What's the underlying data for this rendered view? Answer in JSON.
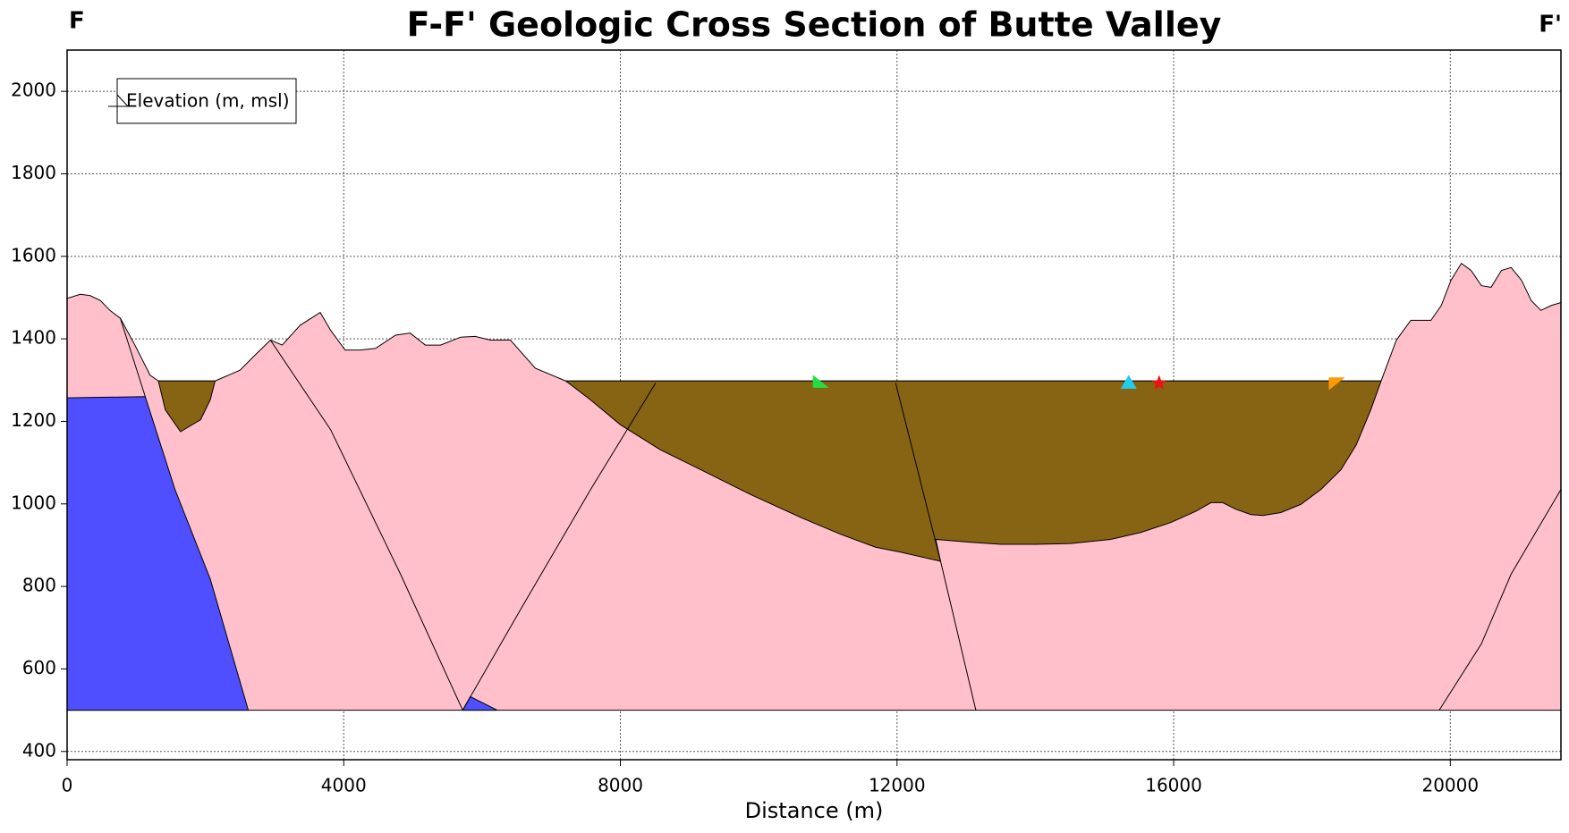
{
  "chart_data": {
    "type": "cross-section",
    "title": "F-F' Geologic Cross Section of Butte Valley",
    "left_label": "F",
    "right_label": "F'",
    "x_label": "Distance (m)",
    "xlim": [
      0,
      21600
    ],
    "ylim": [
      380,
      2100
    ],
    "xticks": [
      0,
      4000,
      8000,
      12000,
      16000,
      20000
    ],
    "yticks": [
      400,
      600,
      800,
      1000,
      1200,
      1400,
      1600,
      1800,
      2000
    ],
    "grid": true,
    "legend": {
      "position": "upper-left",
      "label": "Elevation (m, msl)"
    },
    "units": [
      {
        "color": "#ffc0cb",
        "x": [
          0,
          190,
          330,
          480,
          620,
          770,
          980,
          1200,
          1320,
          2140,
          2500,
          2720,
          2940,
          3110,
          3370,
          3660,
          3810,
          4020,
          4240,
          4460,
          4750,
          4960,
          5180,
          5400,
          5690,
          5900,
          6120,
          6410,
          6770,
          7210,
          19000,
          19220,
          19430,
          19720,
          19870,
          20010,
          20160,
          20300,
          20450,
          20590,
          20740,
          20880,
          21030,
          21170,
          21310,
          21460,
          21600,
          21600,
          0
        ],
        "y": [
          1498,
          1508,
          1505,
          1493,
          1469,
          1450,
          1385,
          1312,
          1298,
          1298,
          1324,
          1361,
          1397,
          1385,
          1433,
          1464,
          1421,
          1373,
          1373,
          1377,
          1409,
          1414,
          1385,
          1385,
          1404,
          1406,
          1397,
          1397,
          1329,
          1298,
          1298,
          1397,
          1445,
          1445,
          1481,
          1542,
          1583,
          1566,
          1529,
          1525,
          1566,
          1573,
          1542,
          1493,
          1469,
          1481,
          1488,
          500,
          500
        ]
      },
      {
        "color": "#4f4fff",
        "x": [
          0,
          1130,
          1560,
          2070,
          2620,
          0
        ],
        "y": [
          1257,
          1260,
          1035,
          818,
          500,
          500
        ]
      },
      {
        "color": "#4f4fff",
        "x": [
          5720,
          5830,
          6220
        ],
        "y": [
          500,
          533,
          500
        ]
      },
      {
        "color": "#876314",
        "x": [
          1320,
          2140,
          2070,
          1930,
          1640,
          1420
        ],
        "y": [
          1298,
          1298,
          1252,
          1204,
          1175,
          1228
        ]
      },
      {
        "color": "#876314",
        "x": [
          7210,
          7570,
          8000,
          8580,
          9160,
          9880,
          10610,
          11190,
          11690,
          12050,
          12630,
          12560,
          13070,
          13500,
          14010,
          14510,
          15090,
          15530,
          15960,
          16320,
          16540,
          16710,
          16900,
          17120,
          17290,
          17550,
          17840,
          18130,
          18420,
          18640,
          18850,
          19000
        ],
        "y": [
          1298,
          1252,
          1192,
          1131,
          1083,
          1023,
          967,
          926,
          895,
          883,
          861,
          914,
          907,
          902,
          902,
          904,
          914,
          931,
          955,
          982,
          1003,
          1003,
          987,
          974,
          972,
          979,
          999,
          1035,
          1083,
          1143,
          1228,
          1298
        ]
      }
    ],
    "faults": [
      {
        "x": [
          770,
          1130
        ],
        "y": [
          1450,
          1260
        ]
      },
      {
        "x": [
          2940,
          3810,
          4820,
          5720
        ],
        "y": [
          1397,
          1180,
          830,
          500
        ]
      },
      {
        "x": [
          5720,
          6560,
          7570,
          8510
        ],
        "y": [
          500,
          745,
          1035,
          1293
        ]
      },
      {
        "x": [
          11980,
          12630,
          13140
        ],
        "y": [
          1293,
          861,
          500
        ]
      },
      {
        "x": [
          19840,
          20450,
          20880,
          21600
        ],
        "y": [
          500,
          661,
          830,
          1035
        ]
      }
    ],
    "markers": [
      {
        "x": 10900,
        "y": 1293,
        "color": "#22dd44",
        "shape": "flag"
      },
      {
        "x": 15350,
        "y": 1293,
        "color": "#22ccee",
        "shape": "triangle"
      },
      {
        "x": 15790,
        "y": 1293,
        "color": "#ee1111",
        "shape": "star"
      },
      {
        "x": 18360,
        "y": 1295,
        "color": "#ff9900",
        "shape": "flag-down"
      }
    ]
  }
}
